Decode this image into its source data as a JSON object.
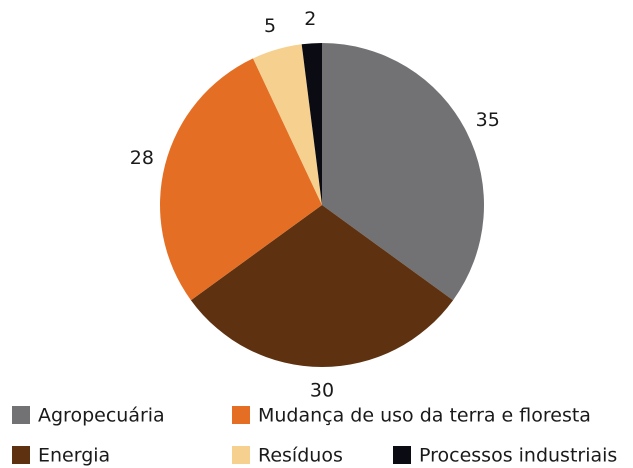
{
  "chart_data": {
    "type": "pie",
    "categories": [
      "Agropecuária",
      "Energia",
      "Mudança de uso da terra e floresta",
      "Resíduos",
      "Processos industriais"
    ],
    "values": [
      35,
      30,
      28,
      5,
      2
    ],
    "colors": [
      "#727275",
      "#5e3210",
      "#e56e25",
      "#f5d08f",
      "#0b0b14"
    ]
  }
}
